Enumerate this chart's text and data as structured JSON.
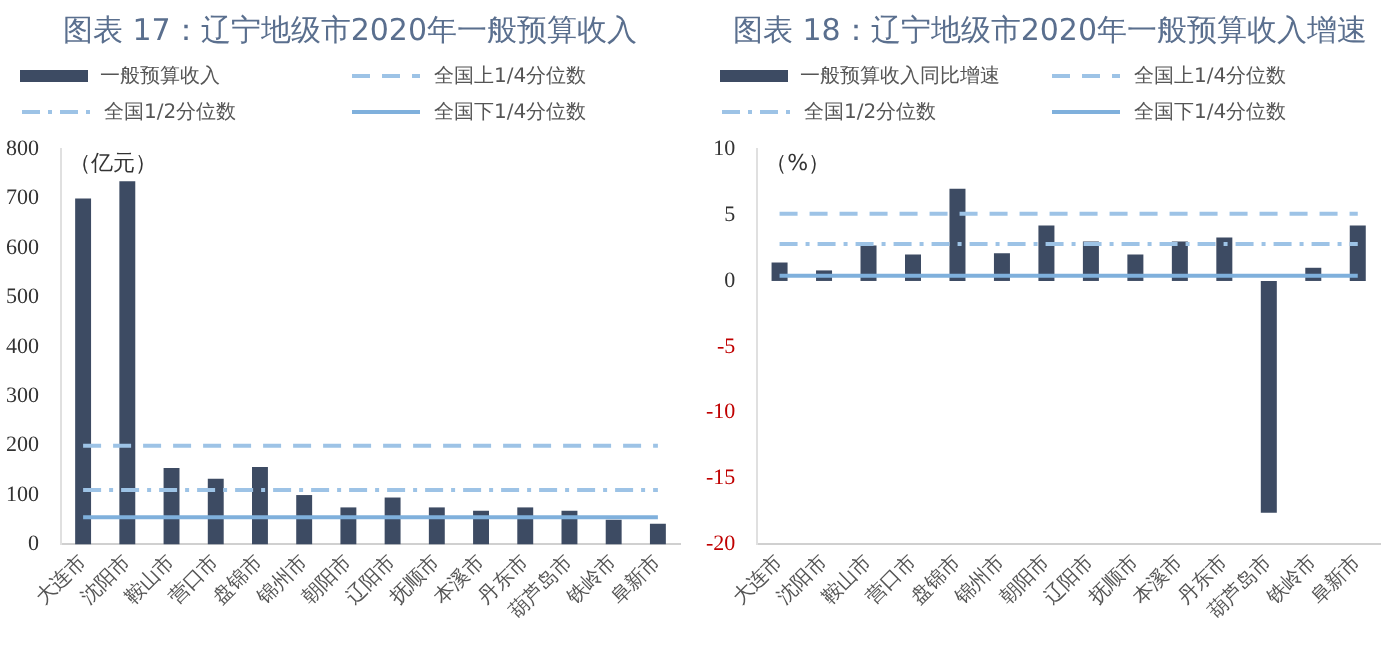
{
  "chart_data": [
    {
      "type": "bar",
      "title": "图表 17：辽宁地级市2020年一般预算收入",
      "ylabel": "（亿元）",
      "categories": [
        "大连市",
        "沈阳市",
        "鞍山市",
        "营口市",
        "盘锦市",
        "锦州市",
        "朝阳市",
        "辽阳市",
        "抚顺市",
        "本溪市",
        "丹东市",
        "葫芦岛市",
        "铁岭市",
        "阜新市"
      ],
      "ylim": [
        0,
        800
      ],
      "yticks": [
        0,
        100,
        200,
        300,
        400,
        500,
        600,
        700,
        800
      ],
      "grid": false,
      "legend": "top",
      "series": [
        {
          "name": "一般预算收入",
          "color": "#3d4b63",
          "values": [
            700,
            735,
            155,
            133,
            157,
            100,
            75,
            95,
            75,
            68,
            75,
            68,
            50,
            42
          ]
        },
        {
          "name": "全国上1/4分位数",
          "type": "line",
          "line_style": "dashed",
          "color": "#9dc3e6",
          "values": [
            200,
            200,
            200,
            200,
            200,
            200,
            200,
            200,
            200,
            200,
            200,
            200,
            200,
            200
          ]
        },
        {
          "name": "全国1/2分位数",
          "type": "line",
          "line_style": "dotted",
          "color": "#9dc3e6",
          "values": [
            110,
            110,
            110,
            110,
            110,
            110,
            110,
            110,
            110,
            110,
            110,
            110,
            110,
            110
          ]
        },
        {
          "name": "全国下1/4分位数",
          "type": "line",
          "line_style": "solid",
          "color": "#7fb0dc",
          "values": [
            55,
            55,
            55,
            55,
            55,
            55,
            55,
            55,
            55,
            55,
            55,
            55,
            55,
            55
          ]
        }
      ]
    },
    {
      "type": "bar",
      "title": "图表 18：辽宁地级市2020年一般预算收入增速",
      "ylabel": "（%）",
      "categories": [
        "大连市",
        "沈阳市",
        "鞍山市",
        "营口市",
        "盘锦市",
        "锦州市",
        "朝阳市",
        "辽阳市",
        "抚顺市",
        "本溪市",
        "丹东市",
        "葫芦岛市",
        "铁岭市",
        "阜新市"
      ],
      "ylim": [
        -20,
        10
      ],
      "yticks": [
        -20,
        -15,
        -10,
        -5,
        0,
        5,
        10
      ],
      "grid": false,
      "legend": "top",
      "series": [
        {
          "name": "一般预算收入同比增速",
          "color": "#3d4b63",
          "values": [
            1.4,
            0.8,
            2.7,
            2.0,
            7.0,
            2.1,
            4.2,
            3.0,
            2.0,
            3.0,
            3.3,
            -17.6,
            1.0,
            4.2
          ]
        },
        {
          "name": "全国上1/4分位数",
          "type": "line",
          "line_style": "dashed",
          "color": "#9dc3e6",
          "values": [
            5.1,
            5.1,
            5.1,
            5.1,
            5.1,
            5.1,
            5.1,
            5.1,
            5.1,
            5.1,
            5.1,
            5.1,
            5.1,
            5.1
          ]
        },
        {
          "name": "全国1/2分位数",
          "type": "line",
          "line_style": "dotted",
          "color": "#9dc3e6",
          "values": [
            2.8,
            2.8,
            2.8,
            2.8,
            2.8,
            2.8,
            2.8,
            2.8,
            2.8,
            2.8,
            2.8,
            2.8,
            2.8,
            2.8
          ]
        },
        {
          "name": "全国下1/4分位数",
          "type": "line",
          "line_style": "solid",
          "color": "#7fb0dc",
          "values": [
            0.4,
            0.4,
            0.4,
            0.4,
            0.4,
            0.4,
            0.4,
            0.4,
            0.4,
            0.4,
            0.4,
            0.4,
            0.4,
            0.4
          ]
        }
      ]
    }
  ]
}
